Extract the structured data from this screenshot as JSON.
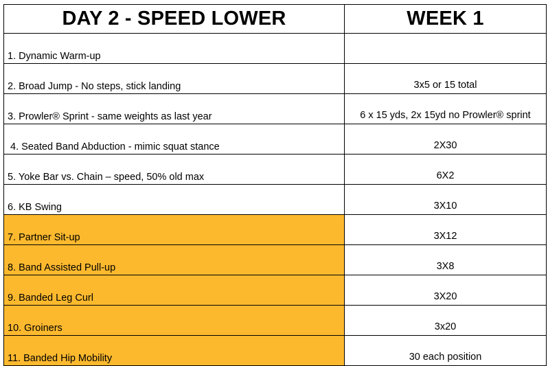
{
  "header": {
    "title": "DAY 2 - SPEED LOWER",
    "week": "WEEK 1"
  },
  "rows": [
    {
      "exercise": "1. Dynamic Warm-up",
      "sets": "",
      "highlight": false
    },
    {
      "exercise": "2. Broad Jump - No steps, stick landing",
      "sets": "3x5 or 15 total",
      "highlight": false
    },
    {
      "exercise": "3. Prowler® Sprint - same weights as last year",
      "sets": "6 x 15 yds, 2x 15yd no Prowler® sprint",
      "highlight": false
    },
    {
      "exercise": " 4. Seated Band Abduction - mimic squat stance",
      "sets": "2X30",
      "highlight": false
    },
    {
      "exercise": "5. Yoke Bar vs. Chain – speed, 50% old max",
      "sets": "6X2",
      "highlight": false
    },
    {
      "exercise": "6. KB Swing",
      "sets": "3X10",
      "highlight": false
    },
    {
      "exercise": "7. Partner Sit-up",
      "sets": "3X12",
      "highlight": true
    },
    {
      "exercise": "8. Band Assisted Pull-up",
      "sets": "3X8",
      "highlight": true
    },
    {
      "exercise": "9. Banded Leg Curl",
      "sets": "3X20",
      "highlight": true
    },
    {
      "exercise": "10. Groiners",
      "sets": "3x20",
      "highlight": true
    },
    {
      "exercise": "11. Banded Hip Mobility",
      "sets": "30 each position",
      "highlight": true
    }
  ],
  "colors": {
    "highlight": "#FDB92E",
    "border": "#000000"
  }
}
